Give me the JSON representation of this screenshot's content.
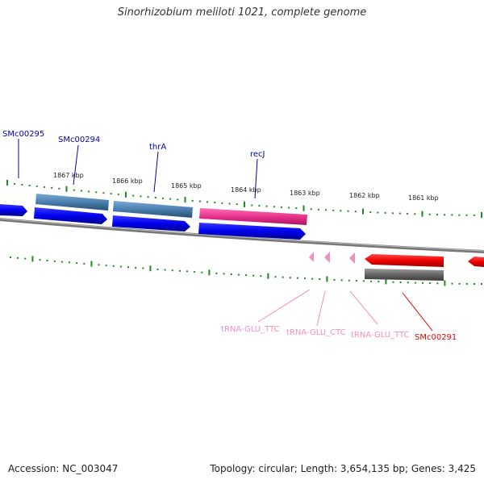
{
  "title": "Sinorhizobium meliloti 1021, complete genome",
  "footer": {
    "accession": "Accession: NC_003047",
    "summary": "Topology: circular; Length: 3,654,135 bp; Genes: 3,425"
  },
  "colors": {
    "cds": "#0000ee",
    "gene": "#4a7fb0",
    "highlight_gene": "#e8338c",
    "trna": "#f090c0",
    "selected_cds": "#ee0000",
    "selected_gene": "#666666",
    "tick": "#1f8a1f",
    "backbone": "#888888"
  },
  "ruler": [
    {
      "label": "1867 kbp"
    },
    {
      "label": "1866 kbp"
    },
    {
      "label": "1865 kbp"
    },
    {
      "label": "1864 kbp"
    },
    {
      "label": "1863 kbp"
    },
    {
      "label": "1862 kbp"
    },
    {
      "label": "1861 kbp"
    }
  ],
  "labels": {
    "smc00295": "SMc00295",
    "smc00294": "SMc00294",
    "thrA": "thrA",
    "recJ": "recJ",
    "trna1": "tRNA-GLU_TTC",
    "trna2": "tRNA-GLU_CTC",
    "trna3": "tRNA-GLU_TTC",
    "smc00291": "SMc00291"
  }
}
